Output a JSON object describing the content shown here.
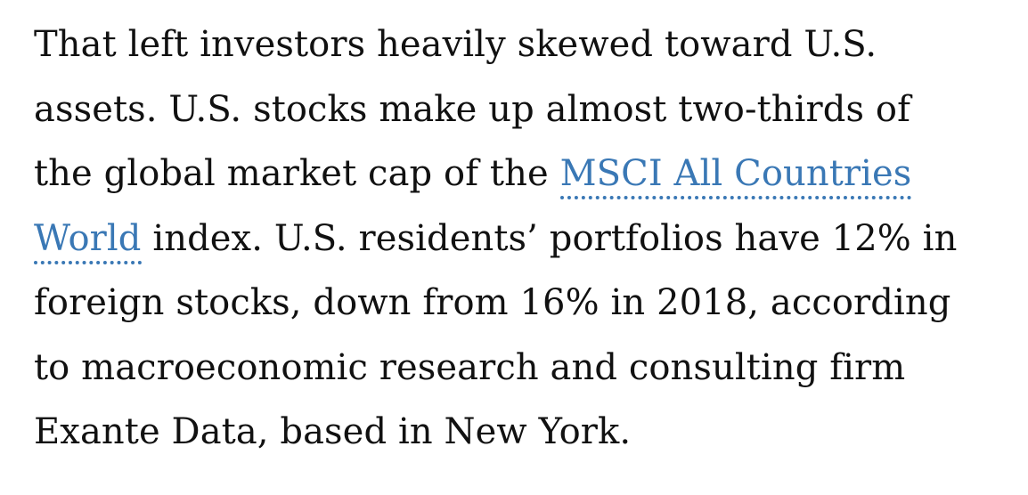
{
  "article": {
    "line1": "That left investors heavily skewed toward U.S.",
    "line2": "assets. U.S. stocks make up almost two-thirds of",
    "line3_text": "the global market cap of the ",
    "link_part1": "MSCI All Countries",
    "link_part2": "World",
    "line4_text": " index. U.S. residents’ portfolios have 12% in",
    "line5": "foreign stocks, down from 16% in 2018, according",
    "line6": "to macroeconomic research and consulting firm",
    "line7": "Exante Data, based in New York."
  },
  "colors": {
    "text": "#111111",
    "link": "#3a78b5",
    "background": "#ffffff"
  }
}
